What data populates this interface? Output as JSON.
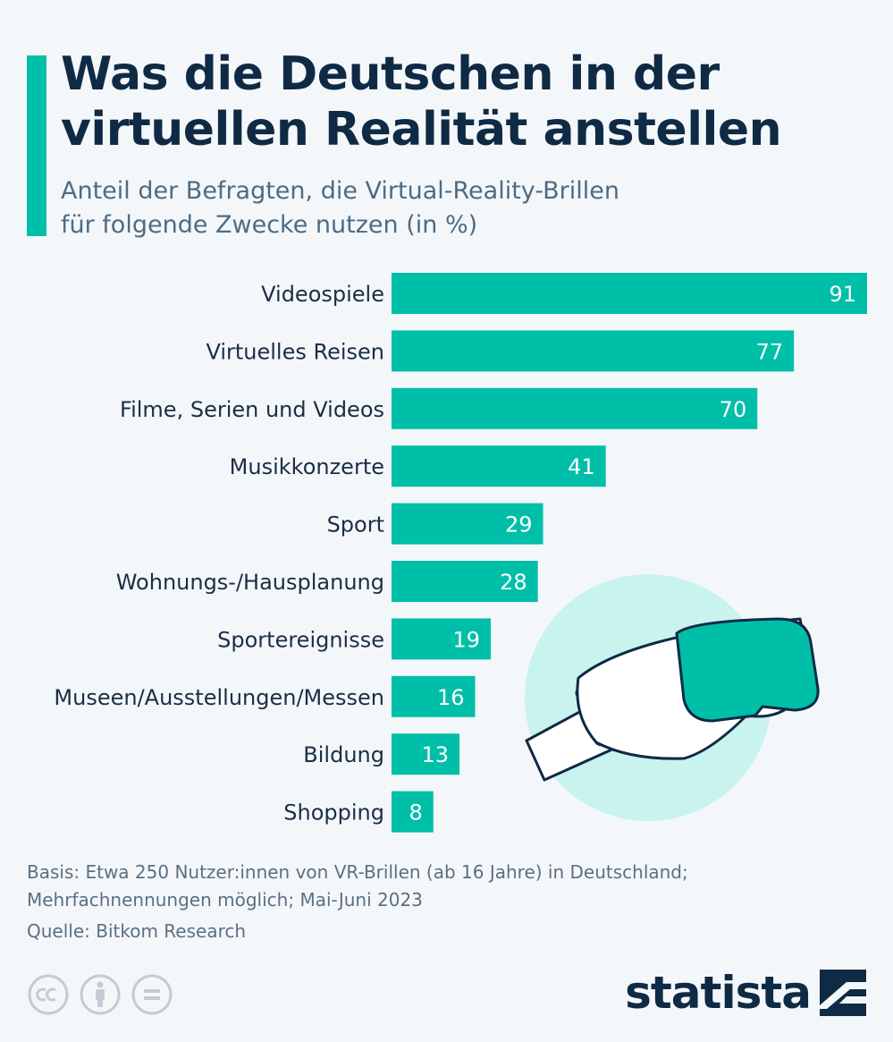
{
  "header": {
    "title_line1": "Was die Deutschen in der",
    "title_line2": "virtuellen Realität anstellen",
    "subtitle_line1": "Anteil der Befragten, die Virtual-Reality-Brillen",
    "subtitle_line2": "für folgende Zwecke nutzen (in %)"
  },
  "chart_data": {
    "type": "bar",
    "orientation": "horizontal",
    "title": "Was die Deutschen in der virtuellen Realität anstellen",
    "subtitle": "Anteil der Befragten, die Virtual-Reality-Brillen für folgende Zwecke nutzen (in %)",
    "categories": [
      "Videospiele",
      "Virtuelles Reisen",
      "Filme, Serien und Videos",
      "Musikkonzerte",
      "Sport",
      "Wohnungs-/Hausplanung",
      "Sportereignisse",
      "Museen/Ausstellungen/Messen",
      "Bildung",
      "Shopping"
    ],
    "values": [
      91,
      77,
      70,
      41,
      29,
      28,
      19,
      16,
      13,
      8
    ],
    "xlim": [
      0,
      91
    ],
    "grid": false,
    "data_labels": true,
    "bar_color": "#00bfa9"
  },
  "notes": {
    "basis_line1": "Basis: Etwa 250 Nutzer:innen von VR-Brillen (ab 16 Jahre) in Deutschland;",
    "basis_line2": "Mehrfachnennungen möglich; Mai-Juni 2023",
    "source": "Quelle: Bitkom Research"
  },
  "footer": {
    "license_icons": [
      "cc-icon",
      "attribution-icon",
      "no-derivatives-icon"
    ],
    "brand": "statista"
  },
  "colors": {
    "accent": "#00bfa9",
    "title": "#0f2a44",
    "subtitle": "#4e6b82",
    "notes": "#5b6f80",
    "illustration_circle": "#c9f3ef"
  }
}
